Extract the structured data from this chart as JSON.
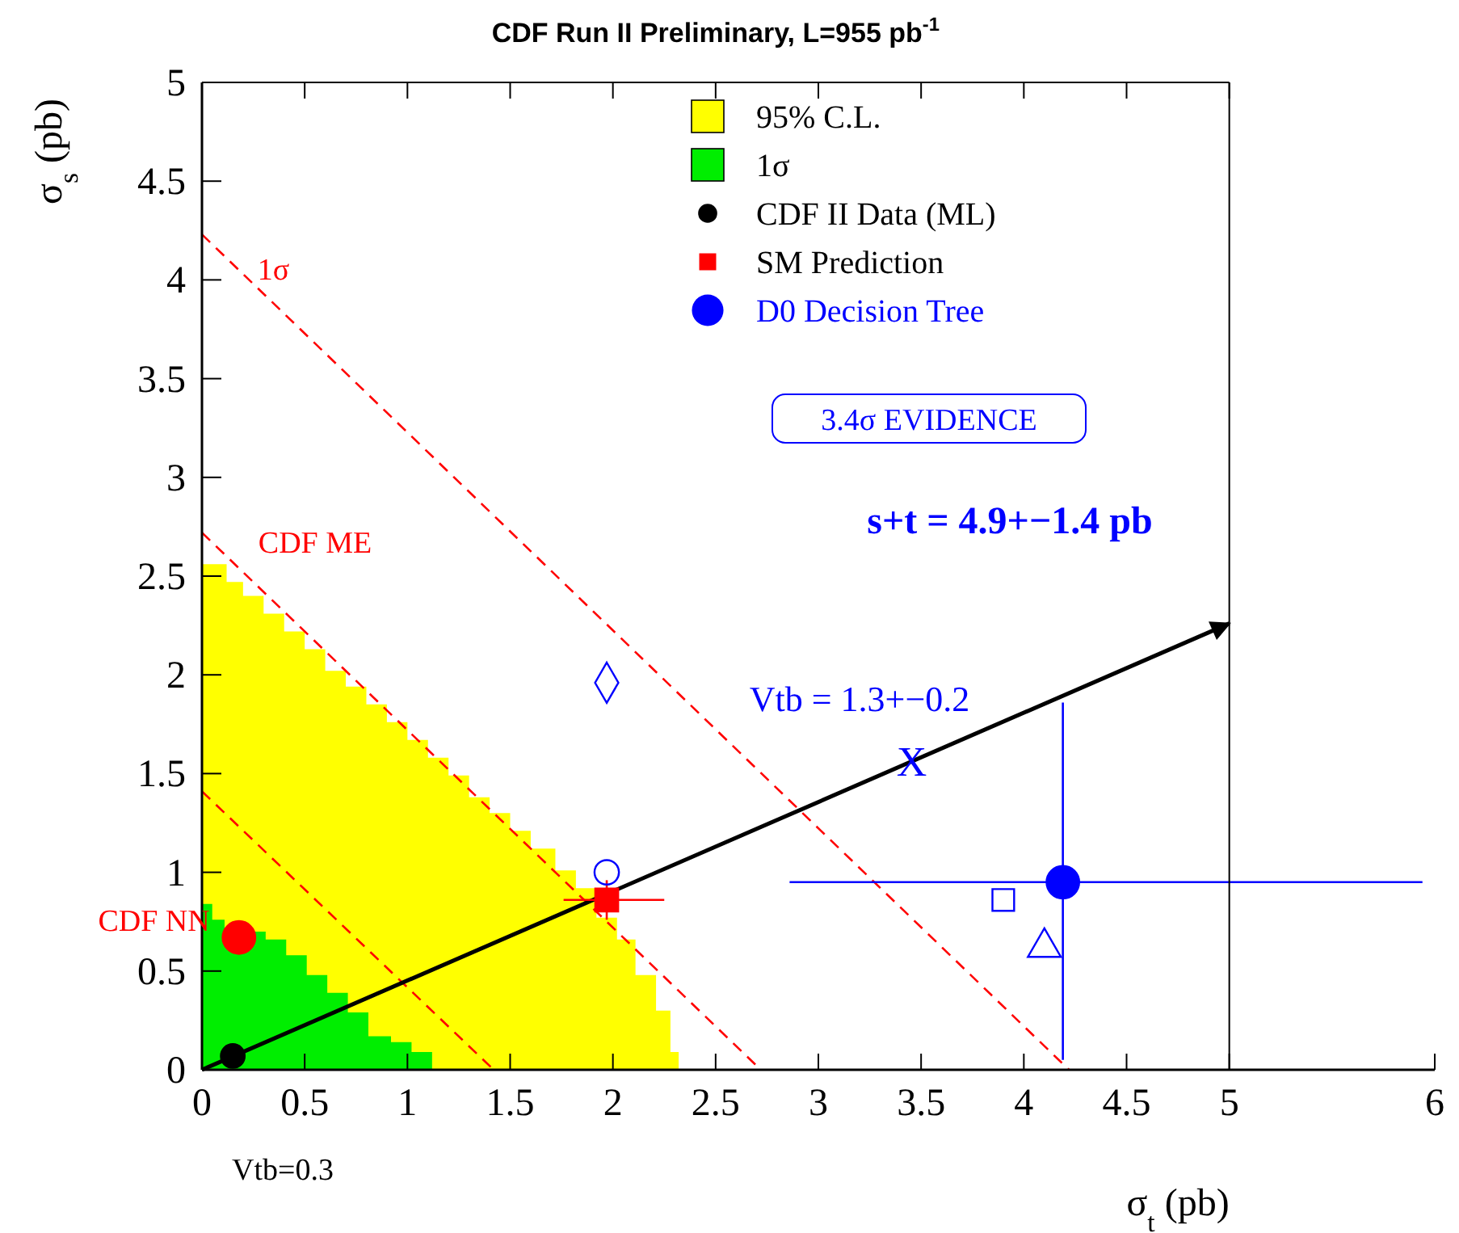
{
  "chart_data": {
    "type": "scatter",
    "title": "CDF Run II Preliminary, L=955 pb$^{-1}$",
    "xlabel": "σ$_{t}$ (pb)",
    "ylabel": "σ$_{s}$ (pb)",
    "xlim": [
      0,
      6
    ],
    "xticks": [
      0,
      0.5,
      1,
      1.5,
      2,
      2.5,
      3,
      3.5,
      4,
      4.5,
      5,
      6
    ],
    "ylim": [
      0,
      5
    ],
    "yticks": [
      0,
      0.5,
      1,
      1.5,
      2,
      2.5,
      3,
      3.5,
      4,
      4.5,
      5
    ],
    "legend": "top right",
    "series": [
      {
        "type": "area",
        "name": "95% C.L.",
        "color": "#ffff00",
        "x": [
          0,
          0.12,
          0.2,
          0.3,
          0.4,
          0.5,
          0.6,
          0.7,
          0.8,
          0.9,
          1.0,
          1.1,
          1.2,
          1.3,
          1.4,
          1.5,
          1.6,
          1.72,
          1.82,
          1.92,
          2.02,
          2.11,
          2.21,
          2.28,
          2.32
        ],
        "values": [
          2.56,
          2.47,
          2.4,
          2.31,
          2.22,
          2.13,
          2.02,
          1.94,
          1.85,
          1.76,
          1.67,
          1.58,
          1.49,
          1.38,
          1.3,
          1.21,
          1.12,
          1.01,
          0.92,
          0.77,
          0.66,
          0.48,
          0.3,
          0.09,
          0.09
        ]
      },
      {
        "type": "area",
        "name": "1σ",
        "color": "#00ee00",
        "x": [
          0,
          0.05,
          0.11,
          0.31,
          0.41,
          0.51,
          0.61,
          0.71,
          0.81,
          0.92,
          1.02,
          1.12
        ],
        "values": [
          0.84,
          0.76,
          0.7,
          0.66,
          0.58,
          0.48,
          0.39,
          0.29,
          0.17,
          0.14,
          0.09,
          0.09
        ]
      },
      {
        "type": "line",
        "color": "#ff0000",
        "line_style": "dashed",
        "x": [
          0,
          1.42
        ],
        "values": [
          1.41,
          0
        ]
      },
      {
        "type": "line",
        "color": "#ff0000",
        "line_style": "dashed",
        "x": [
          0,
          2.72
        ],
        "values": [
          2.72,
          0
        ]
      },
      {
        "type": "line",
        "color": "#ff0000",
        "line_style": "dashed",
        "x": [
          0,
          4.22
        ],
        "values": [
          4.23,
          0
        ]
      },
      {
        "type": "line",
        "color": "#000000",
        "line_style": "solid",
        "x": [
          0,
          5
        ],
        "values": [
          0,
          2.26
        ]
      },
      {
        "name": "CDF II Data (ML)",
        "color": "#000000",
        "marker": "circle",
        "x": [
          0.15
        ],
        "values": [
          0.07
        ]
      },
      {
        "color": "#ff0000",
        "marker": "circle",
        "x": [
          0.18
        ],
        "values": [
          0.67
        ]
      },
      {
        "name": "SM Prediction",
        "color": "#ff0000",
        "marker": "square",
        "x": [
          1.97
        ],
        "values": [
          0.86
        ],
        "xerrors": [
          [
            1.76,
            2.25
          ]
        ],
        "errors": [
          0.1
        ]
      },
      {
        "name": "D0 Decision Tree",
        "color": "#0000ff",
        "marker": "circle",
        "x": [
          4.19
        ],
        "values": [
          0.95
        ],
        "xerrors": [
          [
            2.86,
            5.94
          ]
        ],
        "errors": [
          [
            0.05,
            1.86
          ]
        ]
      },
      {
        "color": "#0000ff",
        "marker": "circle",
        "x": [
          1.97
        ],
        "values": [
          1.0
        ]
      },
      {
        "color": "#0000ff",
        "marker": "diamond",
        "x": [
          1.97
        ],
        "values": [
          1.96
        ]
      },
      {
        "color": "#0000ff",
        "marker": "square",
        "x": [
          3.9
        ],
        "values": [
          0.86
        ]
      },
      {
        "color": "#0000ff",
        "marker": "triangle",
        "x": [
          4.1
        ],
        "values": [
          0.62
        ]
      }
    ],
    "annotations": [
      {
        "text": "1σ",
        "x": 0.27,
        "y": 4.0
      },
      {
        "text": "CDF NN",
        "x": 0.18,
        "y": 0.67
      },
      {
        "text": "X",
        "x": 3.38,
        "y": 1.49
      },
      "Vtb = 1.3+−0.2",
      "CDF ME",
      "s+t = 4.9+−1.4 pb",
      "3.4σ  EVIDENCE",
      "Vtb=0.3"
    ]
  }
}
